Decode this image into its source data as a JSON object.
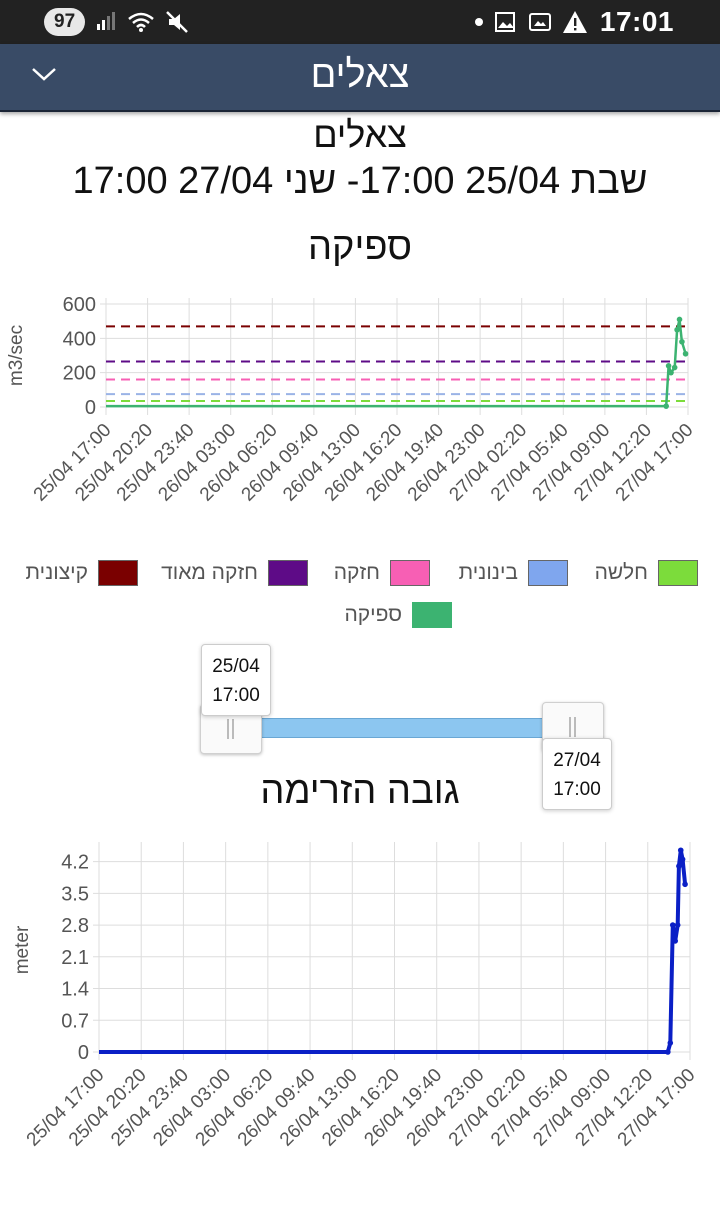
{
  "statusbar": {
    "battery": "97",
    "time": "17:01"
  },
  "appbar": {
    "title": "צאלים"
  },
  "page": {
    "title": "צאלים",
    "date_range": "שבת 25/04 17:00- שני 27/04 17:00"
  },
  "colors": {
    "appbar": "#394b66",
    "flow_series": "#3cb371",
    "level_series": "#0a1fc6",
    "slider": "#8cc6f0"
  },
  "legend": [
    {
      "label": "חלשה",
      "color": "#7cdc3b"
    },
    {
      "label": "בינונית",
      "color": "#7fa6ee"
    },
    {
      "label": "חזקה",
      "color": "#f75fb4"
    },
    {
      "label": "חזקה מאוד",
      "color": "#5e0b87"
    },
    {
      "label": "קיצונית",
      "color": "#7a0000"
    },
    {
      "label": "ספיקה",
      "color": "#3cb371"
    }
  ],
  "slider": {
    "start_date": "25/04",
    "start_time": "17:00",
    "end_date": "27/04",
    "end_time": "17:00"
  },
  "chart_data": [
    {
      "type": "line",
      "title": "ספיקה",
      "ylabel": "m3/sec",
      "ylim": [
        0,
        600
      ],
      "yticks": [
        "600",
        "400",
        "200",
        "0"
      ],
      "xlim": [
        0,
        48
      ],
      "xticks": [
        "25/04 17:00",
        "25/04 20:20",
        "25/04 23:40",
        "26/04 03:00",
        "26/04 06:20",
        "26/04 09:40",
        "26/04 13:00",
        "26/04 16:20",
        "26/04 19:40",
        "26/04 23:00",
        "27/04 02:20",
        "27/04 05:40",
        "27/04 09:00",
        "27/04 12:20",
        "27/04 17:00"
      ],
      "thresholds": [
        {
          "name": "קיצונית",
          "value": 470,
          "color": "#7a0000"
        },
        {
          "name": "חזקה מאוד",
          "value": 265,
          "color": "#5e0b87"
        },
        {
          "name": "חזקה",
          "value": 160,
          "color": "#f75fb4"
        },
        {
          "name": "בינונית",
          "value": 75,
          "color": "#9ab3e6"
        },
        {
          "name": "חלשה",
          "value": 35,
          "color": "#7cdc3b"
        }
      ],
      "series": [
        {
          "name": "ספיקה",
          "color": "#3cb371",
          "x": [
            0,
            46.2,
            46.4,
            46.6,
            46.9,
            47.1,
            47.3,
            47.5,
            47.8
          ],
          "values": [
            5,
            5,
            240,
            200,
            230,
            450,
            510,
            380,
            310
          ]
        }
      ]
    },
    {
      "type": "line",
      "title": "גובה הזרימה",
      "ylabel": "meter",
      "ylim": [
        0,
        4.5
      ],
      "yticks": [
        "4.2",
        "3.5",
        "2.8",
        "2.1",
        "1.4",
        "0.7",
        "0"
      ],
      "xlim": [
        0,
        48
      ],
      "xticks": [
        "25/04 17:00",
        "25/04 20:20",
        "25/04 23:40",
        "26/04 03:00",
        "26/04 06:20",
        "26/04 09:40",
        "26/04 13:00",
        "26/04 16:20",
        "26/04 19:40",
        "26/04 23:00",
        "27/04 02:20",
        "27/04 05:40",
        "27/04 09:00",
        "27/04 12:20",
        "27/04 17:00"
      ],
      "series": [
        {
          "name": "",
          "color": "#0a1fc6",
          "x": [
            0,
            46.2,
            46.4,
            46.6,
            46.8,
            47.0,
            47.1,
            47.25,
            47.4,
            47.6
          ],
          "values": [
            0,
            0,
            0.2,
            2.8,
            2.45,
            2.8,
            4.1,
            4.45,
            4.25,
            3.7
          ]
        }
      ]
    }
  ]
}
